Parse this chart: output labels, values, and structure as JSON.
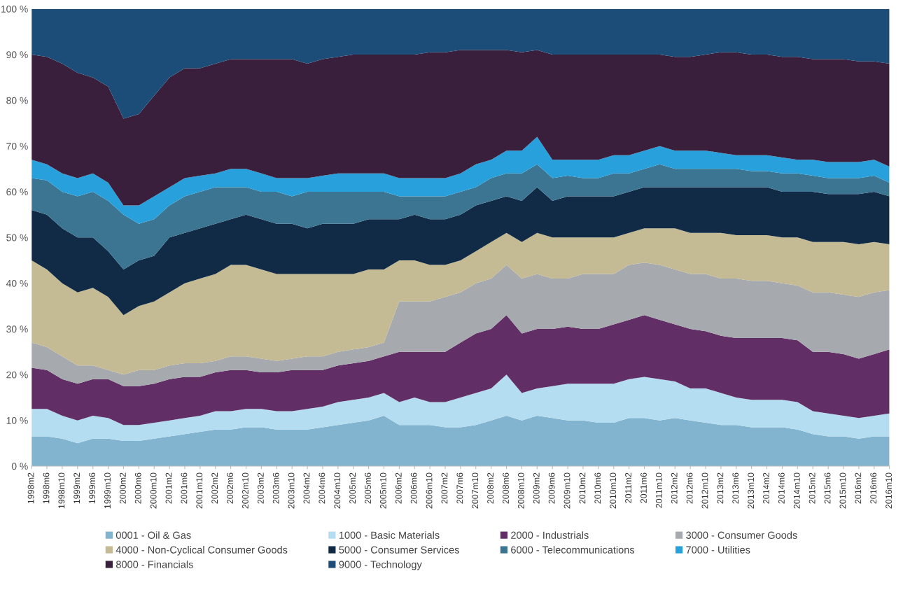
{
  "chart_data": {
    "type": "area",
    "stacked": true,
    "legend": "bottom",
    "grid": false,
    "categories": [
      "1998m2",
      "1998m6",
      "1998m10",
      "1999m2",
      "1999m6",
      "1999m10",
      "2000m2",
      "2000m6",
      "2000m10",
      "2001m2",
      "2001m6",
      "2001m10",
      "2002m2",
      "2002m6",
      "2002m10",
      "2003m2",
      "2003m6",
      "2003m10",
      "2004m2",
      "2004m6",
      "2004m10",
      "2005m2",
      "2005m6",
      "2005m10",
      "2006m2",
      "2006m6",
      "2006m10",
      "2007m2",
      "2007m6",
      "2007m10",
      "2008m2",
      "2008m6",
      "2008m10",
      "2009m2",
      "2009m6",
      "2009m10",
      "2010m2",
      "2010m6",
      "2010m10",
      "2011m2",
      "2011m6",
      "2011m10",
      "2012m2",
      "2012m6",
      "2012m10",
      "2013m2",
      "2013m6",
      "2013m10",
      "2014m2",
      "2014m6",
      "2014m10",
      "2015m2",
      "2015m6",
      "2015m10",
      "2016m2",
      "2016m6",
      "2016m10"
    ],
    "ylim": [
      0,
      100
    ],
    "yticks": [
      {
        "value": 0,
        "label": "0 %"
      },
      {
        "value": 10,
        "label": "10 %"
      },
      {
        "value": 20,
        "label": "20 %"
      },
      {
        "value": 30,
        "label": "30 %"
      },
      {
        "value": 40,
        "label": "40 %"
      },
      {
        "value": 50,
        "label": "50 %"
      },
      {
        "value": 60,
        "label": "60 %"
      },
      {
        "value": 70,
        "label": "70 %"
      },
      {
        "value": 80,
        "label": "80 %"
      },
      {
        "value": 90,
        "label": "90 %"
      },
      {
        "value": 100,
        "label": "100 %"
      }
    ],
    "series": [
      {
        "name": "0001 - Oil & Gas",
        "color": "#82b4cf",
        "values": [
          6.5,
          6.5,
          6,
          5,
          6,
          6,
          5.5,
          5.5,
          6,
          6.5,
          7,
          7.5,
          8,
          8,
          8.5,
          8.5,
          8,
          8,
          8,
          8.5,
          9,
          9.5,
          10,
          11,
          9,
          9,
          9,
          8.5,
          8.5,
          9,
          10,
          11,
          10,
          11,
          10.5,
          10,
          10,
          9.5,
          9.5,
          10.5,
          10.5,
          10,
          10.5,
          10,
          9.5,
          9,
          9,
          8.5,
          8.5,
          8.5,
          8,
          7,
          6.5,
          6.5,
          6,
          6.5,
          6.5
        ]
      },
      {
        "name": "1000 - Basic Materials",
        "color": "#b5ddf1",
        "values": [
          6,
          6,
          5,
          5,
          5,
          4.5,
          3.5,
          3.5,
          3.5,
          3.5,
          3.5,
          3.5,
          4,
          4,
          4,
          4,
          4,
          4,
          4.5,
          4.5,
          5,
          5,
          5,
          5,
          5,
          6,
          5,
          5.5,
          6.5,
          7,
          7,
          9,
          6,
          6,
          7,
          8,
          8,
          8.5,
          8.5,
          8.5,
          9,
          9,
          8,
          7,
          7.5,
          7,
          6,
          6,
          6,
          6,
          6,
          5,
          5,
          4.5,
          4.5,
          4.5,
          5
        ]
      },
      {
        "name": "2000 - Industrials",
        "color": "#612f65",
        "values": [
          9,
          8.5,
          8,
          8,
          8,
          8.5,
          8.5,
          8.5,
          8.5,
          9,
          9,
          8.5,
          8.5,
          9,
          8.5,
          8,
          8.5,
          9,
          8.5,
          8,
          8,
          8,
          8,
          8,
          11,
          10,
          11,
          11,
          12,
          13,
          13,
          13,
          13,
          13,
          12.5,
          12.5,
          12,
          12,
          13,
          13,
          13.5,
          13,
          12.5,
          13,
          12.5,
          12.5,
          13,
          13.5,
          13.5,
          13.5,
          13.5,
          13,
          13.5,
          13.5,
          13,
          13.5,
          14
        ]
      },
      {
        "name": "3000 - Consumer Goods",
        "color": "#a6a9ad",
        "values": [
          5.5,
          5,
          5,
          4,
          3,
          2,
          2.5,
          3.5,
          3,
          3,
          3,
          3,
          2.5,
          3,
          3,
          3,
          2.5,
          2.5,
          3,
          3,
          3,
          3,
          3,
          3,
          11,
          11,
          11,
          12,
          11,
          11,
          11,
          11,
          12,
          12,
          11,
          10.5,
          12,
          12,
          11,
          12,
          11.5,
          12,
          12,
          12,
          12.5,
          12.5,
          13,
          12.5,
          12.5,
          12,
          12,
          13,
          13,
          13,
          13.5,
          13.5,
          13
        ]
      },
      {
        "name": "4000 - Non-Cyclical Consumer Goods",
        "color": "#c4ba94",
        "values": [
          18,
          17,
          16,
          16,
          17,
          16,
          13,
          14,
          15,
          16,
          17.5,
          18.5,
          19,
          20,
          20,
          19.5,
          19,
          18.5,
          18,
          18,
          17,
          16.5,
          17,
          16,
          9,
          9,
          8,
          7,
          7,
          7,
          8,
          7,
          8,
          9,
          9,
          9,
          8,
          8,
          8,
          7,
          7.5,
          8,
          9,
          9,
          9,
          10,
          9.5,
          10,
          10,
          10,
          10.5,
          11,
          11,
          11.5,
          11.5,
          11,
          10
        ]
      },
      {
        "name": "5000 - Consumer Services",
        "color": "#112b47",
        "values": [
          11,
          12,
          12,
          12,
          11,
          10,
          10,
          10,
          10,
          12,
          11,
          11,
          11,
          10,
          11,
          11,
          11,
          11,
          10,
          11,
          11,
          11,
          11,
          11,
          9,
          10,
          10,
          10,
          10,
          10,
          9,
          8,
          9,
          10,
          8,
          9,
          9,
          9,
          9,
          9,
          9,
          9,
          9,
          10,
          10,
          10,
          10.5,
          10.5,
          10.5,
          10,
          10,
          11,
          10.5,
          10.5,
          11,
          11,
          10.5
        ]
      },
      {
        "name": "6000 - Telecommunications",
        "color": "#3b7592",
        "values": [
          7,
          7.5,
          8,
          9,
          10,
          11,
          12,
          8,
          8,
          7,
          8,
          8,
          8,
          7,
          6,
          6,
          7,
          6,
          8,
          7,
          7,
          7,
          6,
          6,
          5,
          4,
          5,
          5,
          5,
          4,
          5,
          5,
          6,
          5,
          5,
          4.5,
          4,
          4,
          5,
          4,
          4,
          5,
          4,
          4,
          4,
          4,
          4,
          3.5,
          3.5,
          4,
          4,
          3.5,
          3.5,
          3.5,
          3.5,
          3.5,
          3
        ]
      },
      {
        "name": "7000 - Utilities",
        "color": "#27a0dc",
        "values": [
          4,
          3.5,
          4,
          4,
          4,
          4,
          2,
          4,
          5,
          4,
          4,
          3.5,
          3,
          4,
          4,
          4,
          3,
          4,
          3,
          3.5,
          4,
          4,
          4,
          4,
          4,
          4,
          4,
          4,
          4,
          5,
          4,
          5,
          5,
          6,
          4,
          3.5,
          4,
          4,
          4,
          4,
          4,
          4,
          4,
          4,
          4,
          3.5,
          3,
          3.5,
          3.5,
          3.5,
          3,
          3.5,
          3.5,
          3.5,
          3.5,
          3.5,
          3.5
        ]
      },
      {
        "name": "8000 - Financials",
        "color": "#3a1f3d",
        "values": [
          23,
          23.5,
          24,
          23,
          21,
          21,
          19,
          20,
          22,
          24,
          24,
          23.5,
          24,
          24,
          24,
          25,
          26,
          26,
          25,
          25.5,
          25.5,
          26,
          26,
          26,
          27,
          27,
          27.5,
          27.5,
          27,
          25,
          24,
          22,
          21.5,
          19,
          23,
          23,
          23,
          23,
          22,
          22,
          21,
          20,
          20.5,
          20.5,
          21,
          22,
          22.5,
          22,
          22,
          22,
          22.5,
          22,
          22.5,
          22.5,
          22,
          21.5,
          22.5
        ]
      },
      {
        "name": "9000 - Technology",
        "color": "#1c4d78",
        "values": [
          10,
          10.5,
          12,
          14,
          15,
          17,
          24,
          23,
          19,
          15,
          13,
          13,
          12,
          11,
          11,
          11,
          11,
          11,
          12,
          11,
          10.5,
          10,
          10,
          10,
          10,
          10,
          9.5,
          9.5,
          9,
          9,
          9,
          9,
          9.5,
          9,
          10,
          10,
          10,
          10,
          10,
          10,
          10,
          10,
          10.5,
          10.5,
          10,
          9.5,
          9.5,
          10,
          10,
          10.5,
          10.5,
          11,
          11,
          11,
          11.5,
          11.5,
          12
        ]
      }
    ]
  }
}
